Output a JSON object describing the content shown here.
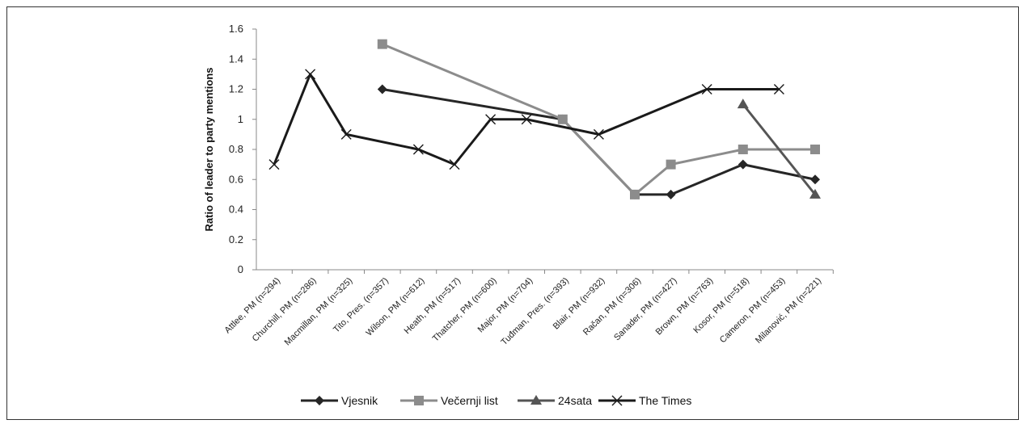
{
  "chart_data": {
    "type": "line",
    "title": "",
    "xlabel": "",
    "ylabel": "Ratio of leader to party mentions",
    "ylim": [
      0,
      1.6
    ],
    "yticks": [
      "0",
      "0.2",
      "0.4",
      "0.6",
      "0.8",
      "1",
      "1.2",
      "1.4",
      "1.6"
    ],
    "grid": false,
    "legend_position": "bottom",
    "categories": [
      "Attlee, PM (n=294)",
      "Churchill, PM (n=286)",
      "Macmillan, PM (n=325)",
      "Tito, Pres. (n=357)",
      "Wilson, PM (n=612)",
      "Heath, PM (n=517)",
      "Thatcher, PM (n=600)",
      "Major, PM (n=704)",
      "Tuđman, Pres. (n=393)",
      "Blair, PM (n=932)",
      "Račan, PM (n=306)",
      "Sanader, PM (n=427)",
      "Brown, PM (n=763)",
      "Kosor, PM (n=518)",
      "Cameron, PM (n=453)",
      "Milanović, PM (n=221)"
    ],
    "series": [
      {
        "name": "Vjesnik",
        "marker": "diamond",
        "color": "#262626",
        "values": [
          null,
          null,
          null,
          1.2,
          null,
          null,
          null,
          null,
          1.0,
          null,
          0.5,
          0.5,
          null,
          0.7,
          null,
          0.6
        ]
      },
      {
        "name": "Večernji list",
        "marker": "square",
        "color": "#8c8c8c",
        "values": [
          null,
          null,
          null,
          1.5,
          null,
          null,
          null,
          null,
          1.0,
          null,
          0.5,
          0.7,
          null,
          0.8,
          null,
          0.8
        ]
      },
      {
        "name": "24sata",
        "marker": "triangle",
        "color": "#555555",
        "values": [
          null,
          null,
          null,
          null,
          null,
          null,
          null,
          null,
          null,
          null,
          null,
          null,
          null,
          1.1,
          null,
          0.5
        ]
      },
      {
        "name": "The Times",
        "marker": "x",
        "color": "#1a1a1a",
        "values": [
          0.7,
          1.3,
          0.9,
          null,
          0.8,
          0.7,
          1.0,
          1.0,
          null,
          0.9,
          null,
          null,
          1.2,
          null,
          1.2,
          null
        ]
      }
    ]
  }
}
